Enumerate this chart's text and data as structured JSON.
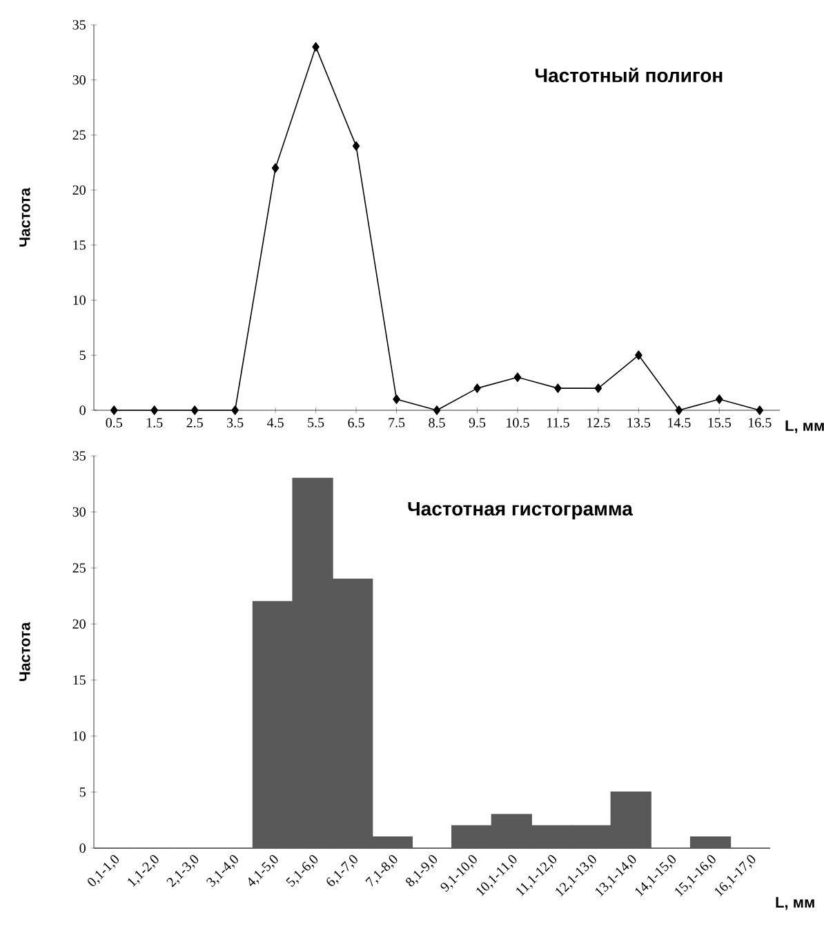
{
  "chart_data": [
    {
      "type": "line",
      "title": "Частотный полигон",
      "xlabel": "L, мм",
      "ylabel": "Частота",
      "x": [
        0.5,
        1.5,
        2.5,
        3.5,
        4.5,
        5.5,
        6.5,
        7.5,
        8.5,
        9.5,
        10.5,
        11.5,
        12.5,
        13.5,
        14.5,
        15.5,
        16.5
      ],
      "series": [
        {
          "color": "#000000",
          "values": [
            0,
            0,
            0,
            0,
            22,
            33,
            24,
            1,
            0,
            2,
            3,
            2,
            2,
            5,
            0,
            1,
            0
          ]
        }
      ],
      "xlim": [
        0,
        17
      ],
      "xticks": [
        {
          "value": 0.5,
          "label": "0.5"
        },
        {
          "value": 1.5,
          "label": "1.5"
        },
        {
          "value": 2.5,
          "label": "2.5"
        },
        {
          "value": 3.5,
          "label": "3.5"
        },
        {
          "value": 4.5,
          "label": "4.5"
        },
        {
          "value": 5.5,
          "label": "5.5"
        },
        {
          "value": 6.5,
          "label": "6.5"
        },
        {
          "value": 7.5,
          "label": "7.5"
        },
        {
          "value": 8.5,
          "label": "8.5"
        },
        {
          "value": 9.5,
          "label": "9.5"
        },
        {
          "value": 10.5,
          "label": "10.5"
        },
        {
          "value": 11.5,
          "label": "11.5"
        },
        {
          "value": 12.5,
          "label": "12.5"
        },
        {
          "value": 13.5,
          "label": "13.5"
        },
        {
          "value": 14.5,
          "label": "14.5"
        },
        {
          "value": 15.5,
          "label": "15.5"
        },
        {
          "value": 16.5,
          "label": "16.5"
        }
      ],
      "ylim": [
        0,
        35
      ],
      "yticks": [
        0,
        5,
        10,
        15,
        20,
        25,
        30,
        35
      ],
      "marker": "diamond",
      "line_style": "solid"
    },
    {
      "type": "bar",
      "title": "Частотная гистограмма",
      "xlabel": "L, мм",
      "ylabel": "Частота",
      "categories": [
        "0,1-1,0",
        "1,1-2,0",
        "2,1-3,0",
        "3,1-4,0",
        "4,1-5,0",
        "5,1-6,0",
        "6,1-7,0",
        "7,1-8,0",
        "8,1-9,0",
        "9,1-10,0",
        "10,1-11,0",
        "11,1-12,0",
        "12,1-13,0",
        "13,1-14,0",
        "14,1-15,0",
        "15,1-16,0",
        "16,1-17,0"
      ],
      "series": [
        {
          "color": "#595959",
          "values": [
            0,
            0,
            0,
            0,
            22,
            33,
            24,
            1,
            0,
            2,
            3,
            2,
            2,
            5,
            0,
            1,
            0
          ]
        }
      ],
      "ylim": [
        0,
        35
      ],
      "yticks": [
        0,
        5,
        10,
        15,
        20,
        25,
        30,
        35
      ]
    }
  ]
}
